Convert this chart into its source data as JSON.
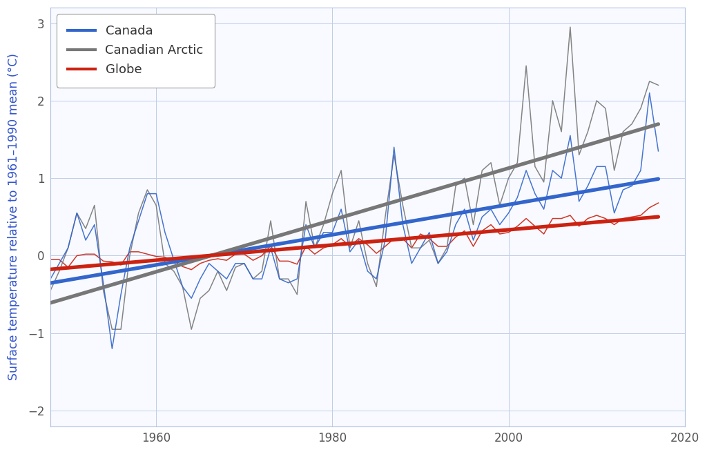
{
  "ylabel": "Surface temperature relative to 1961–1990 mean (°C)",
  "ylabel_color": "#3355cc",
  "background_color": "#ffffff",
  "plot_bg_color": "#f8faff",
  "xlim": [
    1948,
    2020
  ],
  "ylim": [
    -2.2,
    3.2
  ],
  "yticks": [
    -2,
    -1,
    0,
    1,
    2,
    3
  ],
  "xticks": [
    1960,
    1980,
    2000,
    2020
  ],
  "years": [
    1948,
    1949,
    1950,
    1951,
    1952,
    1953,
    1954,
    1955,
    1956,
    1957,
    1958,
    1959,
    1960,
    1961,
    1962,
    1963,
    1964,
    1965,
    1966,
    1967,
    1968,
    1969,
    1970,
    1971,
    1972,
    1973,
    1974,
    1975,
    1976,
    1977,
    1978,
    1979,
    1980,
    1981,
    1982,
    1983,
    1984,
    1985,
    1986,
    1987,
    1988,
    1989,
    1990,
    1991,
    1992,
    1993,
    1994,
    1995,
    1996,
    1997,
    1998,
    1999,
    2000,
    2001,
    2002,
    2003,
    2004,
    2005,
    2006,
    2007,
    2008,
    2009,
    2010,
    2011,
    2012,
    2013,
    2014,
    2015,
    2016,
    2017
  ],
  "canada": [
    -0.3,
    -0.1,
    0.1,
    0.55,
    0.2,
    0.4,
    -0.35,
    -1.2,
    -0.5,
    0.1,
    0.45,
    0.8,
    0.8,
    0.3,
    -0.05,
    -0.4,
    -0.55,
    -0.3,
    -0.1,
    -0.2,
    -0.3,
    -0.1,
    -0.1,
    -0.3,
    -0.3,
    0.1,
    -0.3,
    -0.35,
    -0.3,
    0.4,
    0.1,
    0.3,
    0.3,
    0.6,
    0.05,
    0.2,
    -0.2,
    -0.3,
    0.2,
    1.4,
    0.4,
    -0.1,
    0.1,
    0.3,
    -0.1,
    0.05,
    0.4,
    0.6,
    0.2,
    0.5,
    0.6,
    0.4,
    0.55,
    0.75,
    1.1,
    0.8,
    0.6,
    1.1,
    1.0,
    1.55,
    0.7,
    0.9,
    1.15,
    1.15,
    0.55,
    0.85,
    0.9,
    1.1,
    2.1,
    1.35
  ],
  "arctic": [
    -0.45,
    -0.2,
    0.1,
    0.55,
    0.35,
    0.65,
    -0.45,
    -0.95,
    -0.95,
    0.0,
    0.55,
    0.85,
    0.65,
    -0.1,
    -0.2,
    -0.4,
    -0.95,
    -0.55,
    -0.45,
    -0.2,
    -0.45,
    -0.15,
    -0.1,
    -0.3,
    -0.2,
    0.45,
    -0.3,
    -0.3,
    -0.5,
    0.7,
    0.1,
    0.4,
    0.8,
    1.1,
    0.1,
    0.45,
    -0.1,
    -0.4,
    0.5,
    1.3,
    0.65,
    0.1,
    0.1,
    0.2,
    -0.1,
    0.1,
    0.9,
    1.0,
    0.4,
    1.1,
    1.2,
    0.65,
    1.0,
    1.2,
    2.45,
    1.15,
    0.95,
    2.0,
    1.6,
    2.95,
    1.3,
    1.6,
    2.0,
    1.9,
    1.1,
    1.6,
    1.7,
    1.9,
    2.25,
    2.2
  ],
  "globe": [
    -0.05,
    -0.05,
    -0.15,
    0.0,
    0.02,
    0.02,
    -0.07,
    -0.08,
    -0.12,
    0.05,
    0.05,
    0.02,
    -0.01,
    -0.02,
    -0.07,
    -0.14,
    -0.18,
    -0.1,
    -0.06,
    -0.04,
    -0.06,
    0.02,
    0.02,
    -0.06,
    0.0,
    0.13,
    -0.07,
    -0.07,
    -0.11,
    0.12,
    0.02,
    0.1,
    0.14,
    0.22,
    0.12,
    0.22,
    0.14,
    0.03,
    0.12,
    0.22,
    0.22,
    0.1,
    0.28,
    0.22,
    0.12,
    0.12,
    0.24,
    0.32,
    0.12,
    0.32,
    0.4,
    0.28,
    0.3,
    0.38,
    0.48,
    0.38,
    0.28,
    0.48,
    0.48,
    0.52,
    0.38,
    0.48,
    0.52,
    0.48,
    0.4,
    0.48,
    0.5,
    0.52,
    0.62,
    0.68
  ],
  "canada_color": "#3366cc",
  "arctic_color": "#777777",
  "globe_color": "#cc2211",
  "trend_lw": 3.8,
  "series_lw": 1.1,
  "grid_color": "#c0cce8",
  "tick_color": "#555555",
  "legend_fontsize": 13,
  "tick_fontsize": 12,
  "ylabel_fontsize": 12.5,
  "spine_color": "#b0c0e0"
}
